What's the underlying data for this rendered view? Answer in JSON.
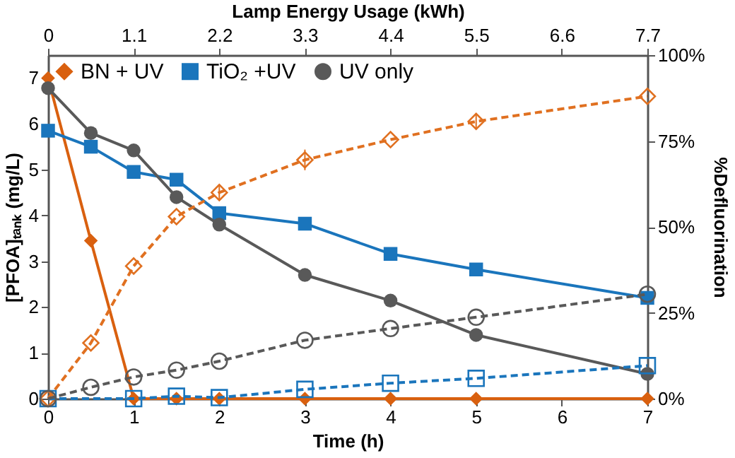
{
  "chart_data": {
    "type": "line",
    "xlabel": "Time (h)",
    "ylabel": "[PFOA]ₜₐₙₖ (mg/L)",
    "y2label": "%Defluorination",
    "x2label": "Lamp Energy Usage (kWh)",
    "x": [
      0,
      0.5,
      1,
      1.5,
      2,
      3,
      4,
      5,
      7
    ],
    "xlim": [
      0,
      7
    ],
    "xticks": [
      0,
      1,
      2,
      3,
      4,
      5,
      6,
      7
    ],
    "x2lim": [
      0,
      7.7
    ],
    "x2ticks": [
      0,
      1.1,
      2.2,
      3.3,
      4.4,
      5.5,
      6.6,
      7.7
    ],
    "ylim": [
      0,
      7.5
    ],
    "yticks": [
      0,
      1,
      2,
      3,
      4,
      5,
      6,
      7
    ],
    "y2lim": [
      0,
      100
    ],
    "y2ticks": [
      {
        "value": 0,
        "label": "0%"
      },
      {
        "value": 25,
        "label": "25%"
      },
      {
        "value": 50,
        "label": "50%"
      },
      {
        "value": 75,
        "label": "75%"
      },
      {
        "value": 100,
        "label": "100%"
      }
    ],
    "legend": "top left",
    "grid": false,
    "series": [
      {
        "name": "BN + UV",
        "color": "#d9600f",
        "marker": "diamond",
        "line_style": "solid",
        "values": [
          7.0,
          3.45,
          0,
          0,
          0,
          0,
          0,
          0,
          0
        ]
      },
      {
        "name": "TiO₂ +UV",
        "color": "#1a75bc",
        "marker": "square",
        "line_style": "solid",
        "values": [
          5.85,
          5.5,
          4.95,
          4.78,
          4.05,
          3.82,
          3.16,
          2.82,
          2.2
        ]
      },
      {
        "name": "UV only",
        "color": "#595959",
        "marker": "circle",
        "line_style": "solid",
        "values": [
          6.78,
          5.8,
          5.42,
          4.4,
          3.8,
          2.7,
          2.14,
          1.39,
          0.54
        ]
      },
      {
        "color": "#e07020",
        "marker": "diamond",
        "line_style": "dashed",
        "axis": "y2",
        "values": [
          0,
          16.2,
          38.6,
          53,
          60,
          69.5,
          75.4,
          80.7,
          88
        ],
        "errors": [
          null,
          null,
          null,
          null,
          2,
          3,
          null,
          2,
          null
        ]
      },
      {
        "color": "#1a75bc",
        "marker": "square",
        "line_style": "dashed",
        "axis": "y2",
        "values": [
          0,
          null,
          0,
          0.7,
          0.3,
          2.7,
          4.5,
          5.9,
          9.6
        ]
      },
      {
        "color": "#595959",
        "marker": "circle",
        "line_style": "dashed",
        "axis": "y2",
        "values": [
          0,
          3.3,
          6.3,
          8.3,
          10.9,
          17,
          20.4,
          23.7,
          30.4
        ]
      }
    ]
  }
}
